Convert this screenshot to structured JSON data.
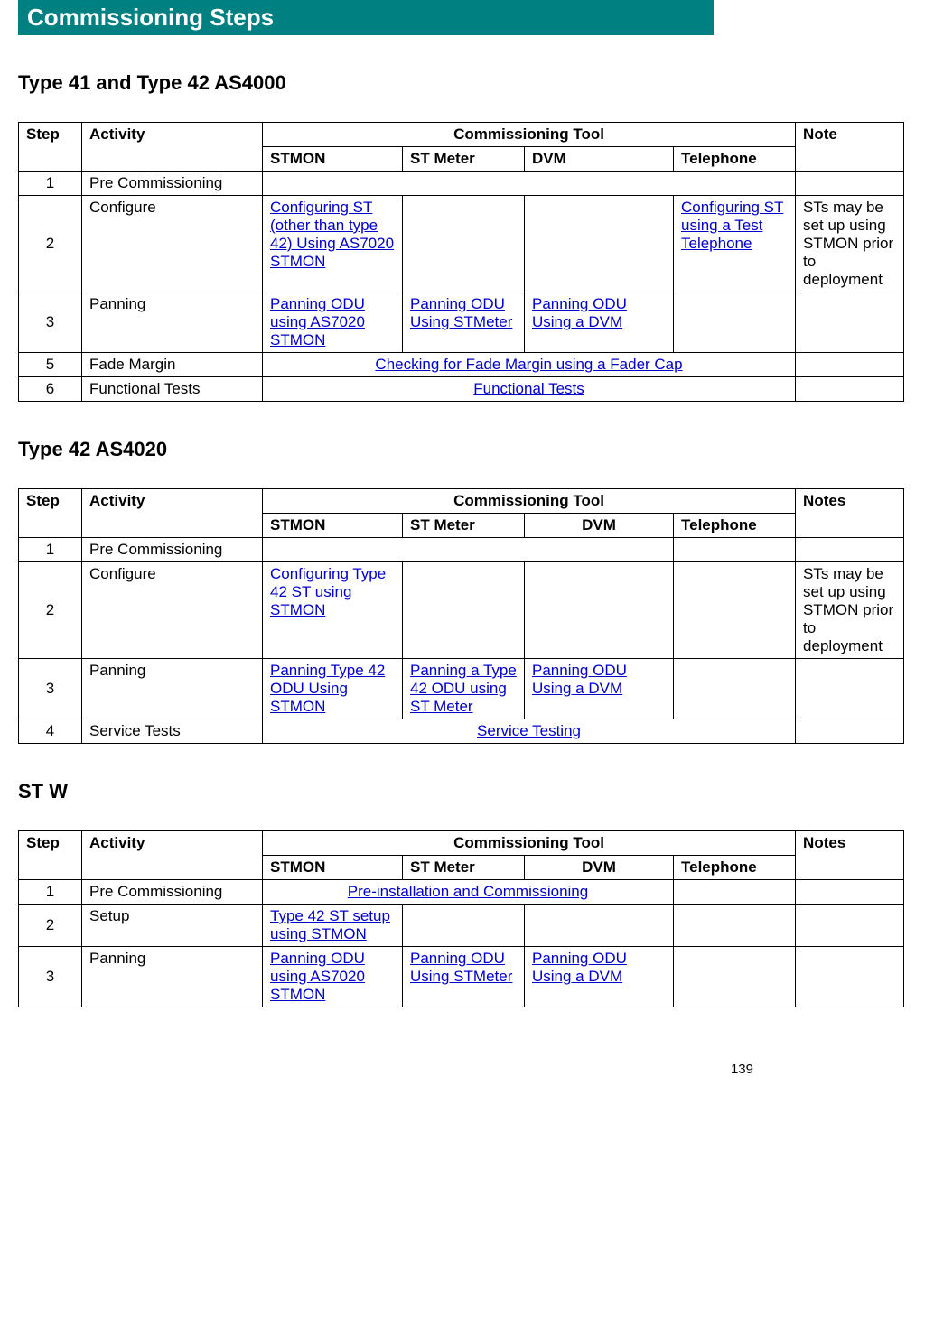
{
  "banner": "Commissioning Steps",
  "pagenum": "139",
  "colors": {
    "banner_bg": "#008080",
    "banner_fg": "#ffffff",
    "link": "#0000cc",
    "border": "#000000",
    "bg": "#ffffff"
  },
  "headers": {
    "step": "Step",
    "activity": "Activity",
    "tool_group": "Commissioning Tool",
    "stmon": "STMON",
    "stmeter": "ST Meter",
    "dvm": "DVM",
    "telephone": "Telephone",
    "note": "Note",
    "notes": "Notes"
  },
  "section1": {
    "title": "Type 41 and Type 42 AS4000",
    "rows": {
      "r1": {
        "step": "1",
        "activity": "Pre Commissioning"
      },
      "r2": {
        "step": "2",
        "activity": "Configure",
        "stmon": " Configuring ST (other than type 42)  Using AS7020 STMON",
        "telephone": "Configuring ST using a Test Telephone",
        "note": "STs may be set up using STMON prior to deployment"
      },
      "r3": {
        "step": "3",
        "activity": "Panning",
        "stmon": "Panning ODU using AS7020 STMON",
        "stmeter": "Panning ODU Using STMeter",
        "dvm": "Panning ODU Using a DVM"
      },
      "r5": {
        "step": "5",
        "activity": "Fade Margin",
        "merged": "Checking for Fade Margin using a Fader Cap"
      },
      "r6": {
        "step": "6",
        "activity": "Functional Tests",
        "merged": "Functional Tests"
      }
    }
  },
  "section2": {
    "title": "Type 42 AS4020",
    "rows": {
      "r1": {
        "step": "1",
        "activity": "Pre Commissioning"
      },
      "r2": {
        "step": "2",
        "activity": "Configure",
        "stmon": "Configuring Type 42 ST  using STMON",
        "note": "STs may be set up using STMON prior to deployment"
      },
      "r3": {
        "step": "3",
        "activity": "Panning",
        "stmon": "Panning Type 42 ODU Using STMON",
        "stmeter": "Panning a Type 42 ODU using ST Meter",
        "dvm": "Panning ODU Using a DVM"
      },
      "r4": {
        "step": "4",
        "activity": "Service Tests",
        "merged": "Service Testing"
      }
    }
  },
  "section3": {
    "title": "ST W",
    "rows": {
      "r1": {
        "step": "1",
        "activity": "Pre Commissioning",
        "merged3": "Pre-installation and Commissioning"
      },
      "r2": {
        "step": "2",
        "activity": "Setup",
        "stmon": "Type 42 ST setup using STMON"
      },
      "r3": {
        "step": "3",
        "activity": "Panning",
        "stmon": "Panning ODU using AS7020 STMON",
        "stmeter": "Panning ODU Using STMeter",
        "dvm": "Panning ODU Using a DVM"
      }
    }
  }
}
